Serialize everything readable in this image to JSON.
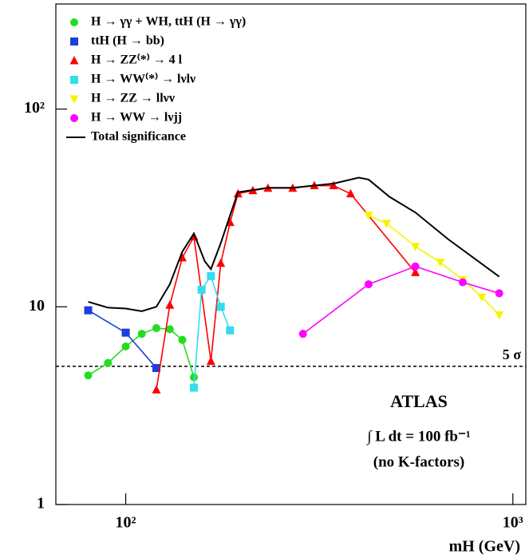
{
  "chart_data": {
    "type": "line",
    "x_label": "mH (GeV)",
    "xscale": "log",
    "yscale": "log",
    "xlim": [
      66,
      1080
    ],
    "ylim": [
      1,
      340
    ],
    "xticks": [
      {
        "value": 100,
        "label": "10²"
      },
      {
        "value": 1000,
        "label": "10³"
      }
    ],
    "yticks": [
      1,
      10,
      {
        "value": 100,
        "label": "10²"
      }
    ],
    "hline": {
      "value": 5,
      "label": "5 σ",
      "color": "#000000"
    },
    "annotations": [
      "ATLAS",
      "∫ L dt = 100 fb⁻¹",
      "(no K-factors)"
    ],
    "legend": "upper left",
    "series": [
      {
        "name": "H → γγ  +  WH, ttH (H → γγ)",
        "color": "#22dd22",
        "marker": "circle",
        "x": [
          80,
          90,
          100,
          110,
          120,
          130,
          140,
          150
        ],
        "values": [
          4.5,
          5.2,
          6.3,
          7.3,
          7.8,
          7.7,
          6.8,
          4.4
        ]
      },
      {
        "name": "ttH (H → bb)",
        "color": "#1a3fdc",
        "marker": "square",
        "x": [
          80,
          100,
          120
        ],
        "values": [
          9.6,
          7.4,
          4.9
        ]
      },
      {
        "name": "H → ZZ⁽*⁾ → 4 l",
        "color": "#ff0000",
        "marker": "triangle",
        "x": [
          120,
          130,
          140,
          150,
          166,
          176,
          186,
          195,
          213,
          233,
          270,
          307,
          344,
          381,
          560
        ],
        "values": [
          3.8,
          10.2,
          17.7,
          22.6,
          5.3,
          16.6,
          26.7,
          37.3,
          38.7,
          39.8,
          39.8,
          41,
          41,
          37.3,
          14.9
        ]
      },
      {
        "name": "H → WW⁽*⁾ → lνlν",
        "color": "#33ddee",
        "marker": "square",
        "x": [
          150,
          157,
          166,
          176,
          186
        ],
        "values": [
          3.9,
          12.2,
          14.3,
          10.0,
          7.6
        ]
      },
      {
        "name": "H → ZZ  → llνν",
        "color": "#f4f400",
        "marker": "triangle-down",
        "x": [
          424,
          472,
          560,
          649,
          742,
          831,
          922
        ],
        "values": [
          29,
          26.4,
          20.2,
          16.8,
          13.7,
          11.2,
          9.1
        ]
      },
      {
        "name": "H → WW  → lνjj",
        "color": "#ff00ff",
        "marker": "circle",
        "x": [
          287,
          424,
          560,
          742,
          922
        ],
        "values": [
          7.3,
          13.0,
          16.0,
          13.3,
          11.7
        ]
      },
      {
        "name": "Total significance",
        "color": "#000000",
        "marker": "none",
        "x": [
          80,
          90,
          100,
          110,
          120,
          130,
          140,
          150,
          160,
          166,
          176,
          186,
          195,
          233,
          270,
          344,
          400,
          424,
          480,
          560,
          680,
          922
        ],
        "values": [
          10.6,
          9.9,
          9.8,
          9.5,
          10,
          13,
          19,
          23.5,
          17,
          15.5,
          21,
          29,
          38,
          40,
          40,
          42,
          45,
          44,
          36,
          30,
          22,
          14.2
        ]
      }
    ]
  }
}
